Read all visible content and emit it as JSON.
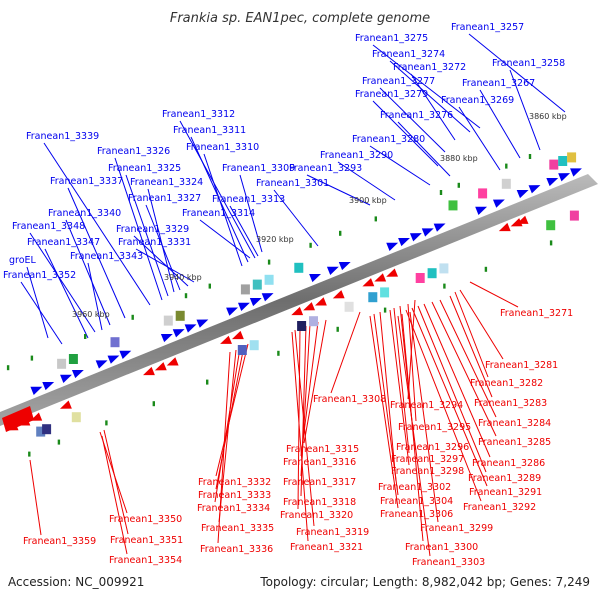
{
  "title": "Frankia sp. EAN1pec, complete genome",
  "footer": {
    "accession": "Accession: NC_009921",
    "topology": "Topology: circular; Length: 8,982,042 bp; Genes: 7,249"
  },
  "colors": {
    "forward": "#0000ee",
    "reverse": "#ee0000",
    "backbone": "#808080"
  },
  "scale_labels": [
    "3860 kbp",
    "3880 kbp",
    "3900 kbp",
    "3920 kbp",
    "3940 kbp",
    "3960 kbp"
  ],
  "forward_labels": [
    "Franean1_3257",
    "Franean1_3275",
    "Franean1_3274",
    "Franean1_3272",
    "Franean1_3258",
    "Franean1_3277",
    "Franean1_3267",
    "Franean1_3279",
    "Franean1_3269",
    "Franean1_3276",
    "Franean1_3280",
    "Franean1_3290",
    "Franean1_3293",
    "Franean1_3312",
    "Franean1_3311",
    "Franean1_3310",
    "Franean1_3339",
    "Franean1_3326",
    "Franean1_3325",
    "Franean1_3324",
    "Franean1_3309",
    "Franean1_3301",
    "Franean1_3337",
    "Franean1_3327",
    "Franean1_3313",
    "Franean1_3340",
    "Franean1_3314",
    "Franean1_3348",
    "Franean1_3329",
    "Franean1_3347",
    "Franean1_3331",
    "groEL",
    "Franean1_3343",
    "Franean1_3352"
  ],
  "reverse_labels": [
    "Franean1_3271",
    "Franean1_3281",
    "Franean1_3282",
    "Franean1_3308",
    "Franean1_3283",
    "Franean1_3294",
    "Franean1_3284",
    "Franean1_3295",
    "Franean1_3285",
    "Franean1_3296",
    "Franean1_3315",
    "Franean1_3297",
    "Franean1_3286",
    "Franean1_3316",
    "Franean1_3298",
    "Franean1_3289",
    "Franean1_3317",
    "Franean1_3332",
    "Franean1_3302",
    "Franean1_3291",
    "Franean1_3333",
    "Franean1_3304",
    "Franean1_3318",
    "Franean1_3292",
    "Franean1_3334",
    "Franean1_3320",
    "Franean1_3306",
    "Franean1_3350",
    "Franean1_3299",
    "Franean1_3335",
    "Franean1_3319",
    "Franean1_3351",
    "Franean1_3300",
    "Franean1_3336",
    "Franean1_3359",
    "Franean1_3321",
    "Franean1_3354",
    "Franean1_3303"
  ]
}
